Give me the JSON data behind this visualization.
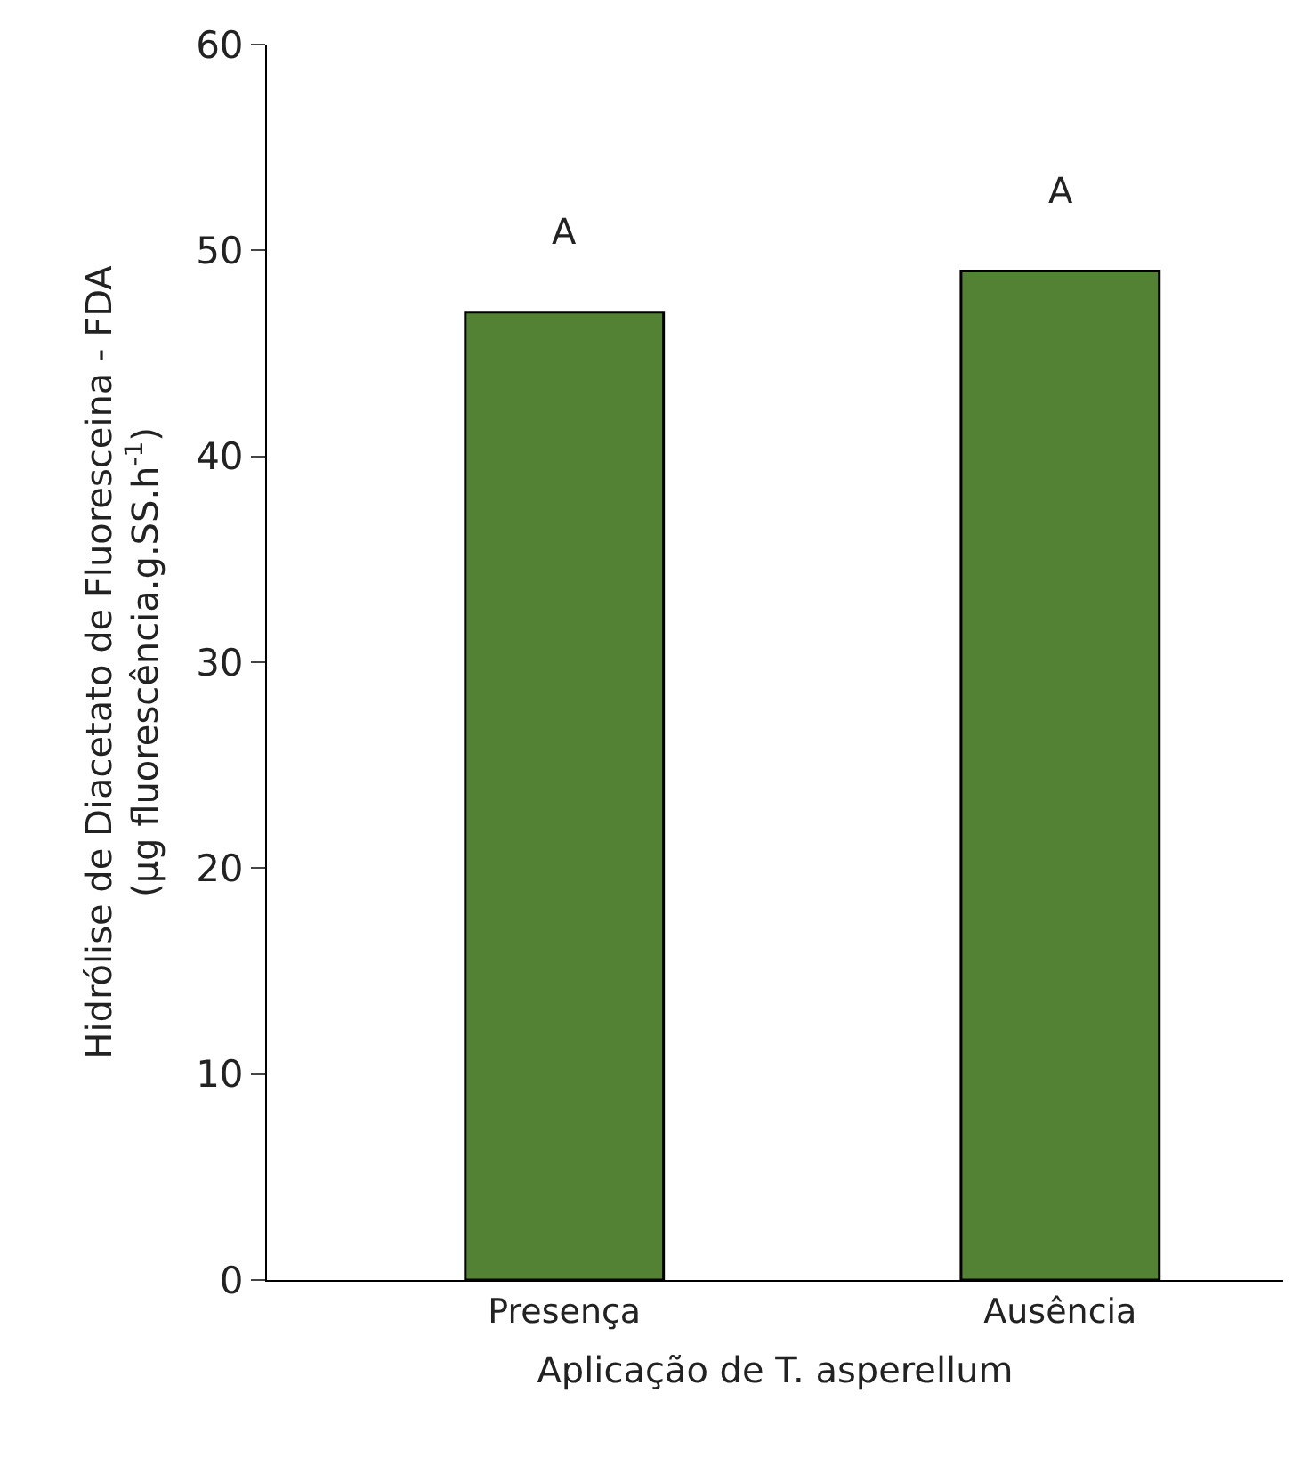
{
  "chart_data": {
    "type": "bar",
    "xlabel": "Aplicação de T. asperellum",
    "ylabel": "Hidrólise de Diacetato de Fluoresceina - FDA\n(µg fluorescência.g.SS.h$^{-1}$)",
    "categories": [
      "Presença",
      "Ausência"
    ],
    "series": [
      {
        "color": "#548235",
        "values": [
          47,
          49
        ]
      }
    ],
    "ylim": [
      0,
      60
    ],
    "yticks": [
      0,
      10,
      20,
      30,
      40,
      50,
      60
    ],
    "legend": false,
    "annotations": [
      "A",
      "A"
    ]
  }
}
